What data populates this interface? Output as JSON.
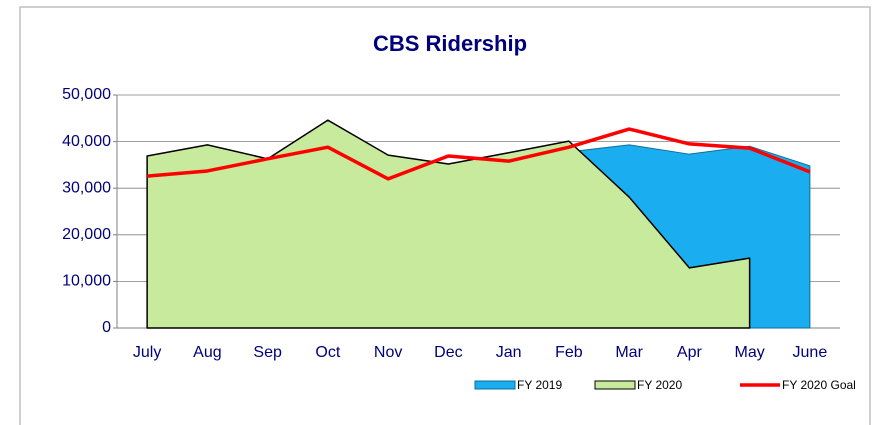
{
  "chart_data": {
    "type": "area",
    "title": "CBS Ridership",
    "categories": [
      "July",
      "Aug",
      "Sep",
      "Oct",
      "Nov",
      "Dec",
      "Jan",
      "Feb",
      "Mar",
      "Apr",
      "May",
      "June"
    ],
    "series": [
      {
        "name": "FY 2019",
        "type": "area",
        "color": "#1aaef0",
        "values": [
          35000,
          37000,
          34000,
          42000,
          35500,
          33500,
          36000,
          37800,
          39300,
          37300,
          39000,
          34800
        ]
      },
      {
        "name": "FY 2020",
        "type": "area",
        "color": "#c8ea9c",
        "values": [
          36900,
          39300,
          36300,
          44600,
          37100,
          35200,
          37600,
          40100,
          28100,
          12900,
          15000,
          null
        ]
      },
      {
        "name": "FY 2020 Goal",
        "type": "line",
        "color": "#ff0000",
        "values": [
          32600,
          33700,
          36300,
          38800,
          32000,
          36900,
          35800,
          38800,
          42700,
          39500,
          38600,
          33500
        ]
      }
    ],
    "ylim": [
      0,
      50000
    ],
    "yticks": [
      0,
      {
        "value": 10000,
        "label": "10,000"
      },
      {
        "value": 20000,
        "label": "20,000"
      },
      {
        "value": 30000,
        "label": "30,000"
      },
      {
        "value": 40000,
        "label": "40,000"
      },
      {
        "value": 50000,
        "label": "50,000"
      }
    ],
    "grid": true,
    "legend": "bottom-right"
  }
}
